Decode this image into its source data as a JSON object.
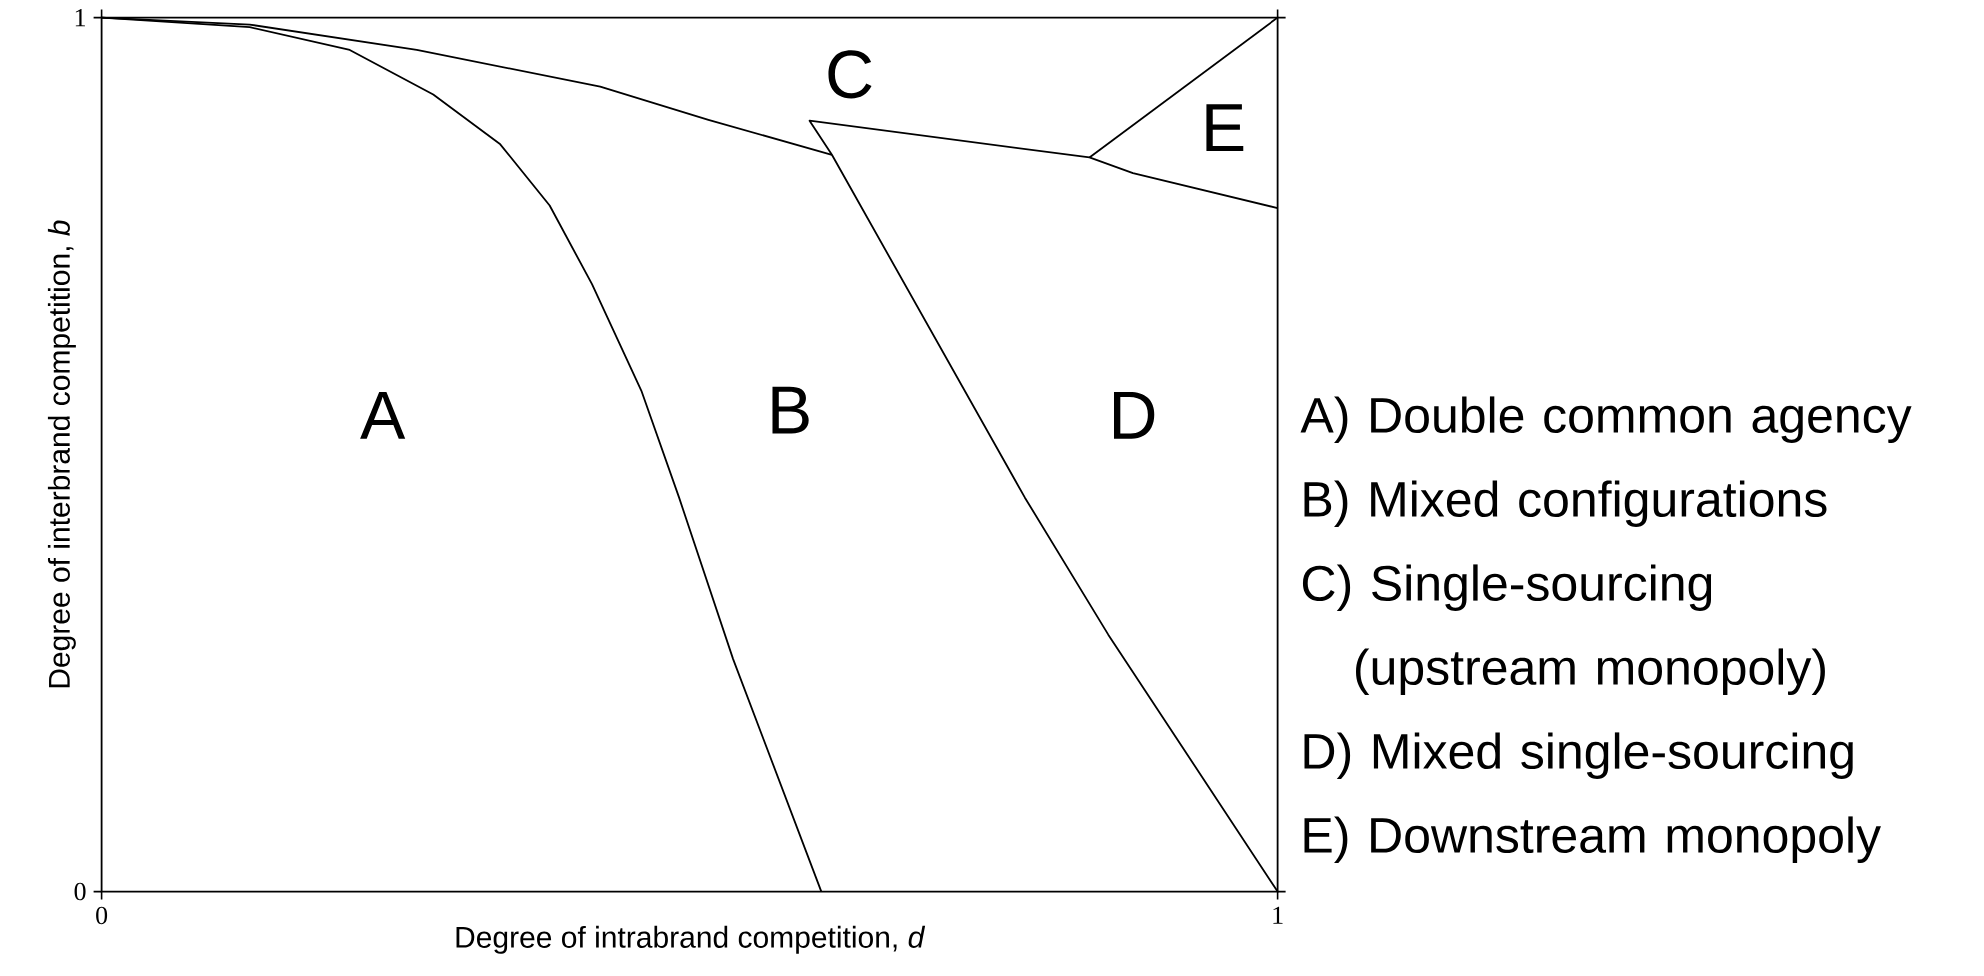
{
  "chart_data": {
    "type": "line",
    "xlabel": "Degree of intrabrand competition, *d*",
    "ylabel": "Degree of interbrand competition, *b*",
    "xlim": [
      0,
      1
    ],
    "ylim": [
      0,
      1
    ],
    "xticks": [
      0,
      1
    ],
    "yticks": [
      0,
      1
    ],
    "series": [
      {
        "color": "#000000",
        "x": [
          0,
          0.126,
          0.211,
          0.282,
          0.339,
          0.381,
          0.417,
          0.459,
          0.491,
          0.537,
          0.612
        ],
        "values": [
          1,
          0.989,
          0.963,
          0.912,
          0.855,
          0.785,
          0.695,
          0.573,
          0.451,
          0.266,
          0
        ]
      },
      {
        "color": "#000000",
        "x": [
          0,
          0.126,
          0.268,
          0.424,
          0.516,
          0.621
        ],
        "values": [
          1,
          0.992,
          0.963,
          0.921,
          0.883,
          0.843
        ]
      },
      {
        "color": "#000000",
        "x": [
          1,
          0.877,
          0.84,
          0.602,
          0.621,
          0.785,
          0.856,
          1
        ],
        "values": [
          0.782,
          0.822,
          0.84,
          0.882,
          0.843,
          0.451,
          0.294,
          0
        ]
      },
      {
        "color": "#000000",
        "x": [
          0.84,
          1
        ],
        "values": [
          0.84,
          1
        ]
      }
    ],
    "annotations": [
      "A",
      "B",
      "C",
      "D",
      "E",
      "A) Double common agency",
      "B) Mixed configurations",
      "C) Single-sourcing (upstream monopoly)",
      "D) Mixed single-sourcing",
      "E) Downstream monopoly"
    ]
  }
}
